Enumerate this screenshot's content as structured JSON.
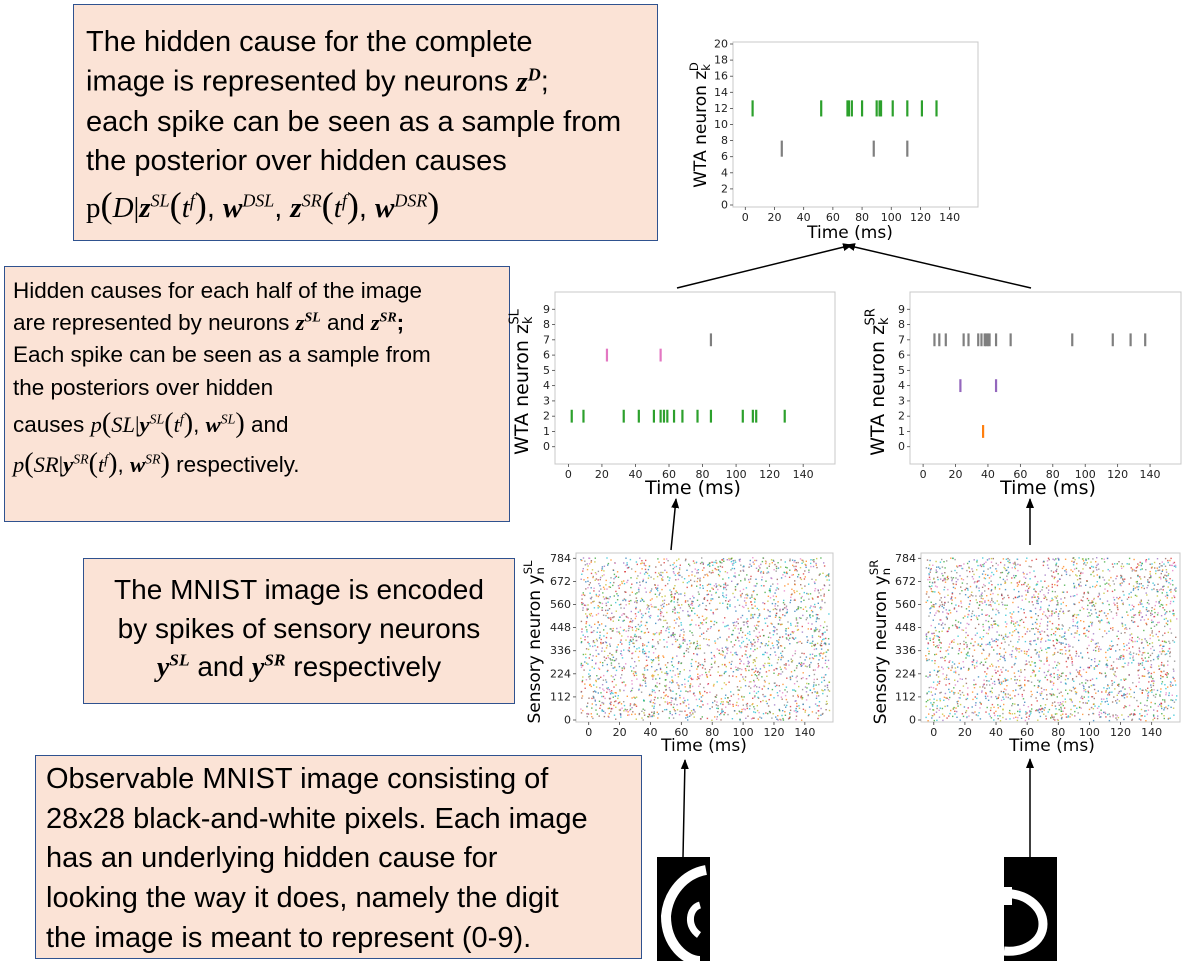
{
  "boxes": {
    "top": {
      "line1": "The hidden cause for the complete",
      "line2": "image is represented by neurons",
      "line3": "each spike can be seen as a sample from",
      "line4": "the posterior over hidden causes"
    },
    "mid": {
      "line1": "Hidden causes for each half of the image",
      "line2_a": "are represented by neurons",
      "line2_b": "and",
      "line3": "Each spike can be seen as a sample from",
      "line4": "the posteriors over hidden",
      "line5_a": "causes",
      "line5_b": "and",
      "line6_b": "respectively."
    },
    "sensory": {
      "line1": "The MNIST image is encoded",
      "line2": "by spikes of sensory neurons",
      "line3_a": "and",
      "line3_b": "respectively"
    },
    "observable": {
      "line1": "Observable MNIST image consisting of",
      "line2": "28x28 black-and-white pixels. Each image",
      "line3": "has an underlying hidden cause for",
      "line4": "looking the way it does, namely the digit",
      "line5": "the image is meant to represent (0-9)."
    }
  },
  "chart_data": [
    {
      "id": "D",
      "type": "scatter",
      "xlabel": "Time (ms)",
      "ylabel": "WTA neuron z",
      "ylabel_sup": "D",
      "ylabel_sub": "k",
      "xticks": [
        0,
        20,
        40,
        60,
        80,
        100,
        120,
        140
      ],
      "yticks": [
        0,
        2,
        4,
        6,
        8,
        10,
        12,
        14,
        16,
        18,
        20
      ],
      "xlim": [
        -5,
        156
      ],
      "ylim": [
        0,
        20
      ],
      "series": [
        {
          "neuron": 12,
          "color": "#2ca02c",
          "times": [
            5,
            52,
            70,
            71,
            73,
            80,
            90,
            92,
            93,
            101,
            111,
            121,
            131
          ]
        },
        {
          "neuron": 7,
          "color": "#7f7f7f",
          "times": [
            25,
            88,
            111
          ]
        }
      ]
    },
    {
      "id": "SL",
      "type": "scatter",
      "xlabel": "Time (ms)",
      "ylabel": "WTA neuron z",
      "ylabel_sup": "SL",
      "ylabel_sub": "k",
      "xticks": [
        0,
        20,
        40,
        60,
        80,
        100,
        120,
        140
      ],
      "yticks": [
        0,
        1,
        2,
        3,
        4,
        5,
        6,
        7,
        8,
        9
      ],
      "xlim": [
        -5,
        156
      ],
      "ylim": [
        -1,
        10
      ],
      "series": [
        {
          "neuron": 2,
          "color": "#2ca02c",
          "times": [
            2,
            9,
            33,
            42,
            51,
            55,
            57,
            59,
            63,
            68,
            77,
            85,
            104,
            110,
            112,
            129
          ]
        },
        {
          "neuron": 6,
          "color": "#e377c2",
          "times": [
            23,
            55
          ]
        },
        {
          "neuron": 7,
          "color": "#7f7f7f",
          "times": [
            85
          ]
        }
      ]
    },
    {
      "id": "SR",
      "type": "scatter",
      "xlabel": "Time (ms)",
      "ylabel": "WTA neuron z",
      "ylabel_sup": "SR",
      "ylabel_sub": "k",
      "xticks": [
        0,
        20,
        40,
        60,
        80,
        100,
        120,
        140
      ],
      "yticks": [
        0,
        1,
        2,
        3,
        4,
        5,
        6,
        7,
        8,
        9
      ],
      "xlim": [
        -5,
        156
      ],
      "ylim": [
        -1,
        10
      ],
      "series": [
        {
          "neuron": 7,
          "color": "#7f7f7f",
          "times": [
            7,
            10,
            14,
            25,
            28,
            34,
            36,
            38,
            39,
            40,
            41,
            45,
            54,
            92,
            117,
            128,
            137
          ]
        },
        {
          "neuron": 4,
          "color": "#9467bd",
          "times": [
            23,
            45
          ]
        },
        {
          "neuron": 1,
          "color": "#ff7f0e",
          "times": [
            37
          ]
        }
      ]
    },
    {
      "id": "ySL",
      "type": "scatter",
      "xlabel": "Time (ms)",
      "ylabel": "Sensory neuron y",
      "ylabel_sup": "SL",
      "ylabel_sub": "n",
      "xticks": [
        0,
        20,
        40,
        60,
        80,
        100,
        120,
        140
      ],
      "yticks": [
        0,
        112,
        224,
        336,
        448,
        560,
        672,
        784
      ],
      "xlim": [
        -5,
        155
      ],
      "ylim": [
        0,
        800
      ]
    },
    {
      "id": "ySR",
      "type": "scatter",
      "xlabel": "Time (ms)",
      "ylabel": "Sensory neuron y",
      "ylabel_sup": "SR",
      "ylabel_sub": "n",
      "xticks": [
        0,
        20,
        40,
        60,
        80,
        100,
        120,
        140
      ],
      "yticks": [
        0,
        112,
        224,
        336,
        448,
        560,
        672,
        784
      ],
      "xlim": [
        -5,
        155
      ],
      "ylim": [
        0,
        800
      ]
    }
  ],
  "colors": {
    "box_fill": "#fbe3d6",
    "box_border": "#2f528f",
    "sensory_palette": [
      "#1f77b4",
      "#ff7f0e",
      "#2ca02c",
      "#d62728",
      "#9467bd",
      "#8c564b",
      "#e377c2",
      "#7f7f7f",
      "#bcbd22",
      "#17becf"
    ]
  }
}
